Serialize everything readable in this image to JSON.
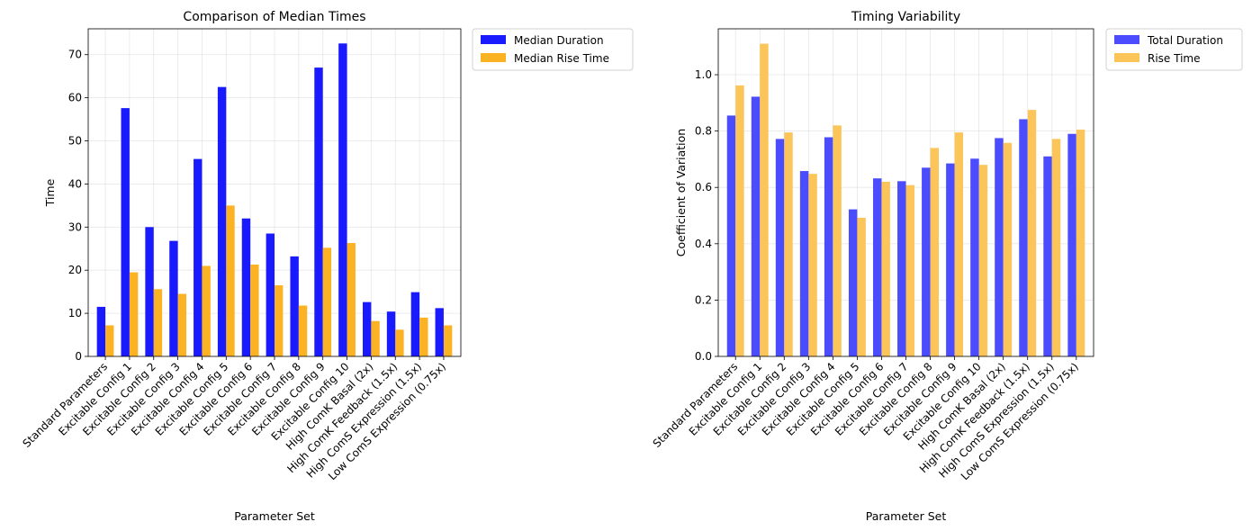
{
  "chart_data": [
    {
      "type": "bar",
      "title": "Comparison of Median Times",
      "xlabel": "Parameter Set",
      "ylabel": "Time",
      "ylim": [
        0,
        76
      ],
      "yticks": [
        0,
        10,
        20,
        30,
        40,
        50,
        60,
        70
      ],
      "grid": true,
      "legend_position": "outside-right-top",
      "categories": [
        "Standard Parameters",
        "Excitable Config 1",
        "Excitable Config 2",
        "Excitable Config 3",
        "Excitable Config 4",
        "Excitable Config 5",
        "Excitable Config 6",
        "Excitable Config 7",
        "Excitable Config 8",
        "Excitable Config 9",
        "Excitable Config 10",
        "High ComK Basal (2x)",
        "High ComK Feedback (1.5x)",
        "High ComS Expression (1.5x)",
        "Low ComS Expression (0.75x)"
      ],
      "series": [
        {
          "name": "Median Duration",
          "color": "#1a1aff",
          "values": [
            11.5,
            57.6,
            30.0,
            26.8,
            45.8,
            62.5,
            32.0,
            28.5,
            23.2,
            67.0,
            72.6,
            12.6,
            10.4,
            14.9,
            11.2
          ]
        },
        {
          "name": "Median Rise Time",
          "color": "#fbb223",
          "values": [
            7.2,
            19.5,
            15.6,
            14.5,
            21.0,
            35.0,
            21.3,
            16.5,
            11.8,
            25.2,
            26.3,
            8.2,
            6.2,
            9.0,
            7.2
          ]
        }
      ]
    },
    {
      "type": "bar",
      "title": "Timing Variability",
      "xlabel": "Parameter Set",
      "ylabel": "Coefficient of Variation",
      "ylim": [
        0,
        1.163
      ],
      "yticks": [
        "0.0",
        "0.2",
        "0.4",
        "0.6",
        "0.8",
        "1.0"
      ],
      "grid": true,
      "legend_position": "outside-right-top",
      "categories": [
        "Standard Parameters",
        "Excitable Config 1",
        "Excitable Config 2",
        "Excitable Config 3",
        "Excitable Config 4",
        "Excitable Config 5",
        "Excitable Config 6",
        "Excitable Config 7",
        "Excitable Config 8",
        "Excitable Config 9",
        "Excitable Config 10",
        "High ComK Basal (2x)",
        "High ComK Feedback (1.5x)",
        "High ComS Expression (1.5x)",
        "Low ComS Expression (0.75x)"
      ],
      "series": [
        {
          "name": "Total Duration",
          "color": "#4c4cff",
          "values": [
            0.855,
            0.922,
            0.772,
            0.658,
            0.778,
            0.522,
            0.632,
            0.622,
            0.67,
            0.685,
            0.702,
            0.775,
            0.842,
            0.71,
            0.79
          ]
        },
        {
          "name": "Rise Time",
          "color": "#fbc55a",
          "values": [
            0.962,
            1.11,
            0.795,
            0.648,
            0.82,
            0.492,
            0.62,
            0.608,
            0.74,
            0.795,
            0.68,
            0.758,
            0.875,
            0.772,
            0.805
          ]
        }
      ]
    }
  ]
}
